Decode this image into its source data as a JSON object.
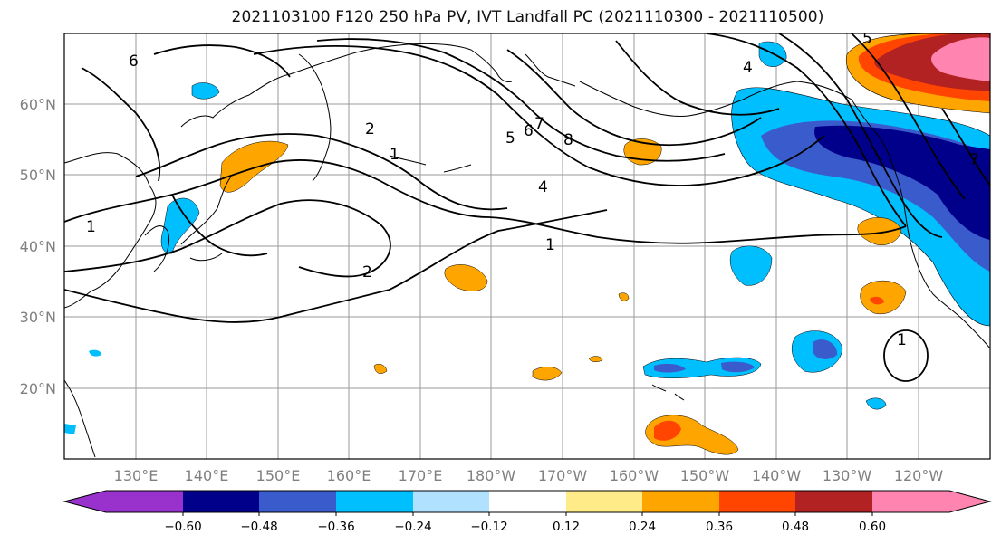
{
  "title": "2021103100 F120 250 hPa PV, IVT Landfall PC (2021110300 - 2021110500)",
  "map": {
    "lat_labels": [
      "60°N",
      "50°N",
      "40°N",
      "30°N",
      "20°N"
    ],
    "lon_labels": [
      "130°E",
      "140°E",
      "150°E",
      "160°E",
      "170°E",
      "180°W",
      "170°W",
      "160°W",
      "150°W",
      "140°W",
      "130°W",
      "120°W"
    ],
    "contour_labels": [
      "1",
      "2",
      "4",
      "5",
      "6",
      "7",
      "8",
      "1",
      "2",
      "4",
      "1",
      "1",
      "6",
      "7",
      "5"
    ]
  },
  "colorbar": {
    "tick_labels": [
      "−0.60",
      "−0.48",
      "−0.36",
      "−0.24",
      "−0.12",
      "0.12",
      "0.24",
      "0.36",
      "0.48",
      "0.60"
    ],
    "colors": [
      "#9932cc",
      "#00008b",
      "#3a5bcc",
      "#00bfff",
      "#b0e2ff",
      "#ffffff",
      "#ffeb88",
      "#ffa500",
      "#ff4500",
      "#b22222",
      "#ff85b0"
    ]
  }
}
